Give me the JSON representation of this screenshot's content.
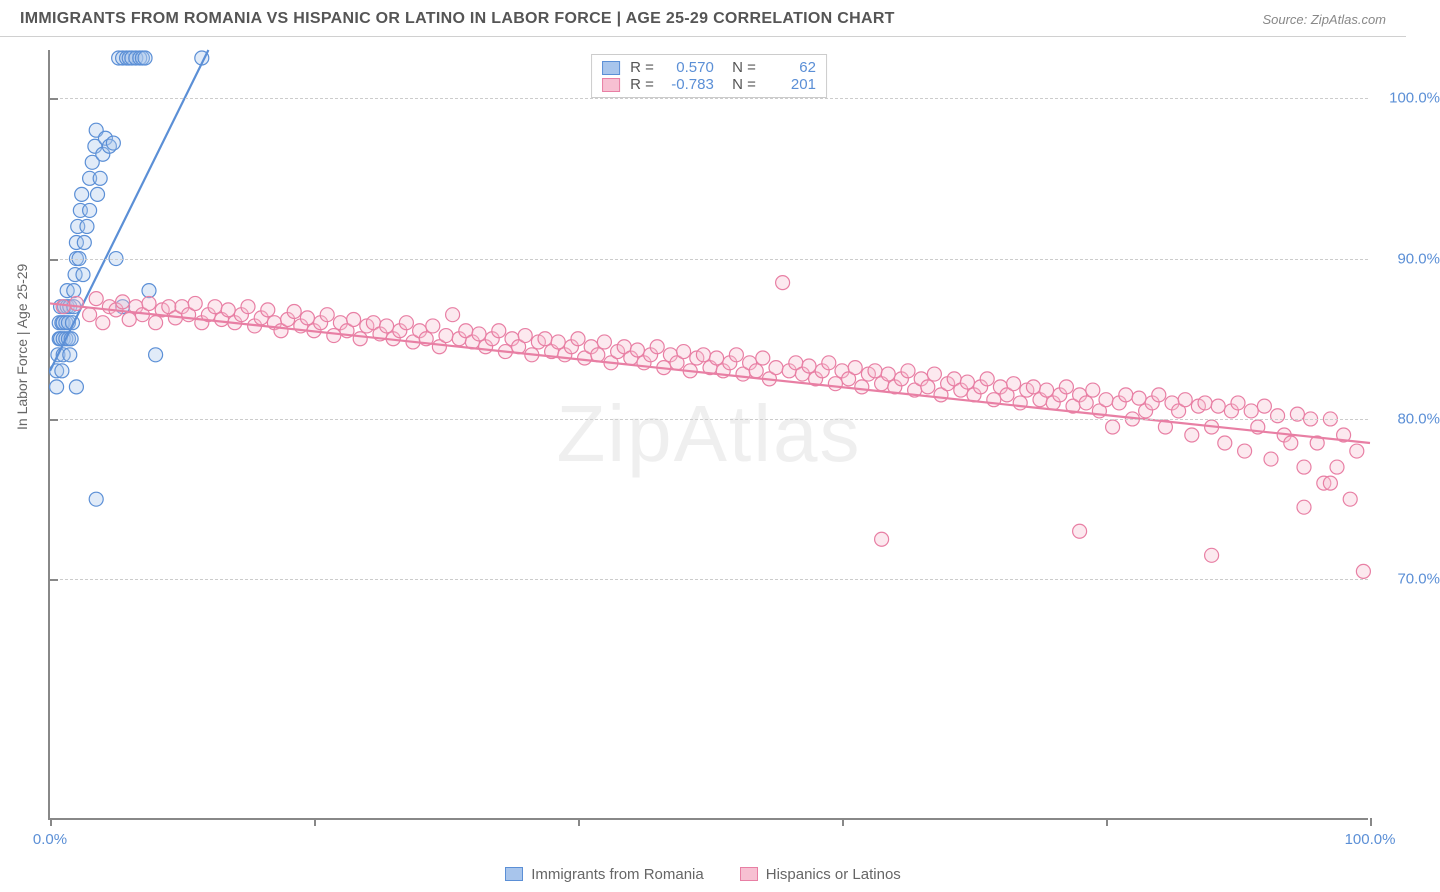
{
  "title": "IMMIGRANTS FROM ROMANIA VS HISPANIC OR LATINO IN LABOR FORCE | AGE 25-29 CORRELATION CHART",
  "source": "Source: ZipAtlas.com",
  "watermark": "ZipAtlas",
  "ylabel": "In Labor Force | Age 25-29",
  "chart": {
    "type": "scatter",
    "xlim": [
      0,
      100
    ],
    "ylim": [
      55,
      103
    ],
    "yticks": [
      70,
      80,
      90,
      100
    ],
    "ytick_labels": [
      "70.0%",
      "80.0%",
      "90.0%",
      "100.0%"
    ],
    "xticks": [
      0,
      20,
      40,
      60,
      80,
      100
    ],
    "x_corner_labels": [
      "0.0%",
      "100.0%"
    ],
    "grid_color": "#cccccc",
    "axis_color": "#888888",
    "background": "#ffffff",
    "marker_radius": 7,
    "marker_fill_opacity": 0.35,
    "marker_stroke_width": 1.2,
    "trend_line_width": 2.2,
    "series": [
      {
        "name": "Immigrants from Romania",
        "color": "#5b8fd6",
        "fill": "#a8c5ec",
        "R": "0.570",
        "N": "62",
        "trend": {
          "x1": 0,
          "y1": 83,
          "x2": 12,
          "y2": 103
        },
        "points": [
          [
            0.5,
            82
          ],
          [
            0.5,
            83
          ],
          [
            0.6,
            84
          ],
          [
            0.7,
            85
          ],
          [
            0.7,
            86
          ],
          [
            0.8,
            85
          ],
          [
            0.8,
            87
          ],
          [
            0.9,
            86
          ],
          [
            0.9,
            83
          ],
          [
            1.0,
            84
          ],
          [
            1.0,
            85
          ],
          [
            1.0,
            86
          ],
          [
            1.1,
            87
          ],
          [
            1.2,
            85
          ],
          [
            1.2,
            86
          ],
          [
            1.3,
            87
          ],
          [
            1.3,
            88
          ],
          [
            1.4,
            86
          ],
          [
            1.4,
            85
          ],
          [
            1.5,
            87
          ],
          [
            1.5,
            84
          ],
          [
            1.6,
            85
          ],
          [
            1.7,
            86
          ],
          [
            1.8,
            87
          ],
          [
            1.8,
            88
          ],
          [
            1.9,
            89
          ],
          [
            2.0,
            90
          ],
          [
            2.0,
            91
          ],
          [
            2.1,
            92
          ],
          [
            2.2,
            90
          ],
          [
            2.3,
            93
          ],
          [
            2.4,
            94
          ],
          [
            2.5,
            89
          ],
          [
            2.6,
            91
          ],
          [
            2.8,
            92
          ],
          [
            3.0,
            93
          ],
          [
            3.0,
            95
          ],
          [
            3.2,
            96
          ],
          [
            3.4,
            97
          ],
          [
            3.5,
            98
          ],
          [
            3.6,
            94
          ],
          [
            3.8,
            95
          ],
          [
            4.0,
            96.5
          ],
          [
            4.2,
            97.5
          ],
          [
            4.5,
            97
          ],
          [
            4.8,
            97.2
          ],
          [
            5.0,
            90
          ],
          [
            5.2,
            102.5
          ],
          [
            5.5,
            102.5
          ],
          [
            5.8,
            102.5
          ],
          [
            6.0,
            102.5
          ],
          [
            6.2,
            102.5
          ],
          [
            6.5,
            102.5
          ],
          [
            6.8,
            102.5
          ],
          [
            7.0,
            102.5
          ],
          [
            7.2,
            102.5
          ],
          [
            7.5,
            88
          ],
          [
            8.0,
            84
          ],
          [
            11.5,
            102.5
          ],
          [
            2.0,
            82
          ],
          [
            3.5,
            75
          ],
          [
            5.5,
            87
          ]
        ]
      },
      {
        "name": "Hispanics or Latinos",
        "color": "#e87fa4",
        "fill": "#f7c0d2",
        "R": "-0.783",
        "N": "201",
        "trend": {
          "x1": 0,
          "y1": 87.2,
          "x2": 100,
          "y2": 78.5
        },
        "points": [
          [
            1,
            87
          ],
          [
            2,
            87.2
          ],
          [
            3,
            86.5
          ],
          [
            3.5,
            87.5
          ],
          [
            4,
            86
          ],
          [
            4.5,
            87
          ],
          [
            5,
            86.8
          ],
          [
            5.5,
            87.3
          ],
          [
            6,
            86.2
          ],
          [
            6.5,
            87
          ],
          [
            7,
            86.5
          ],
          [
            7.5,
            87.2
          ],
          [
            8,
            86
          ],
          [
            8.5,
            86.8
          ],
          [
            9,
            87
          ],
          [
            9.5,
            86.3
          ],
          [
            10,
            87
          ],
          [
            10.5,
            86.5
          ],
          [
            11,
            87.2
          ],
          [
            11.5,
            86
          ],
          [
            12,
            86.5
          ],
          [
            12.5,
            87
          ],
          [
            13,
            86.2
          ],
          [
            13.5,
            86.8
          ],
          [
            14,
            86
          ],
          [
            14.5,
            86.5
          ],
          [
            15,
            87
          ],
          [
            15.5,
            85.8
          ],
          [
            16,
            86.3
          ],
          [
            16.5,
            86.8
          ],
          [
            17,
            86
          ],
          [
            17.5,
            85.5
          ],
          [
            18,
            86.2
          ],
          [
            18.5,
            86.7
          ],
          [
            19,
            85.8
          ],
          [
            19.5,
            86.3
          ],
          [
            20,
            85.5
          ],
          [
            20.5,
            86
          ],
          [
            21,
            86.5
          ],
          [
            21.5,
            85.2
          ],
          [
            22,
            86
          ],
          [
            22.5,
            85.5
          ],
          [
            23,
            86.2
          ],
          [
            23.5,
            85
          ],
          [
            24,
            85.8
          ],
          [
            24.5,
            86
          ],
          [
            25,
            85.3
          ],
          [
            25.5,
            85.8
          ],
          [
            26,
            85
          ],
          [
            26.5,
            85.5
          ],
          [
            27,
            86
          ],
          [
            27.5,
            84.8
          ],
          [
            28,
            85.5
          ],
          [
            28.5,
            85
          ],
          [
            29,
            85.8
          ],
          [
            29.5,
            84.5
          ],
          [
            30,
            85.2
          ],
          [
            30.5,
            86.5
          ],
          [
            31,
            85
          ],
          [
            31.5,
            85.5
          ],
          [
            32,
            84.8
          ],
          [
            32.5,
            85.3
          ],
          [
            33,
            84.5
          ],
          [
            33.5,
            85
          ],
          [
            34,
            85.5
          ],
          [
            34.5,
            84.2
          ],
          [
            35,
            85
          ],
          [
            35.5,
            84.5
          ],
          [
            36,
            85.2
          ],
          [
            36.5,
            84
          ],
          [
            37,
            84.8
          ],
          [
            37.5,
            85
          ],
          [
            38,
            84.2
          ],
          [
            38.5,
            84.8
          ],
          [
            39,
            84
          ],
          [
            39.5,
            84.5
          ],
          [
            40,
            85
          ],
          [
            40.5,
            83.8
          ],
          [
            41,
            84.5
          ],
          [
            41.5,
            84
          ],
          [
            42,
            84.8
          ],
          [
            42.5,
            83.5
          ],
          [
            43,
            84.2
          ],
          [
            43.5,
            84.5
          ],
          [
            44,
            83.8
          ],
          [
            44.5,
            84.3
          ],
          [
            45,
            83.5
          ],
          [
            45.5,
            84
          ],
          [
            46,
            84.5
          ],
          [
            46.5,
            83.2
          ],
          [
            47,
            84
          ],
          [
            47.5,
            83.5
          ],
          [
            48,
            84.2
          ],
          [
            48.5,
            83
          ],
          [
            49,
            83.8
          ],
          [
            49.5,
            84
          ],
          [
            50,
            83.2
          ],
          [
            50.5,
            83.8
          ],
          [
            51,
            83
          ],
          [
            51.5,
            83.5
          ],
          [
            52,
            84
          ],
          [
            52.5,
            82.8
          ],
          [
            53,
            83.5
          ],
          [
            53.5,
            83
          ],
          [
            54,
            83.8
          ],
          [
            54.5,
            82.5
          ],
          [
            55,
            83.2
          ],
          [
            55.5,
            88.5
          ],
          [
            56,
            83
          ],
          [
            56.5,
            83.5
          ],
          [
            57,
            82.8
          ],
          [
            57.5,
            83.3
          ],
          [
            58,
            82.5
          ],
          [
            58.5,
            83
          ],
          [
            59,
            83.5
          ],
          [
            59.5,
            82.2
          ],
          [
            60,
            83
          ],
          [
            60.5,
            82.5
          ],
          [
            61,
            83.2
          ],
          [
            61.5,
            82
          ],
          [
            62,
            82.8
          ],
          [
            62.5,
            83
          ],
          [
            63,
            82.2
          ],
          [
            63.5,
            82.8
          ],
          [
            64,
            82
          ],
          [
            64.5,
            82.5
          ],
          [
            65,
            83
          ],
          [
            65.5,
            81.8
          ],
          [
            66,
            82.5
          ],
          [
            66.5,
            82
          ],
          [
            67,
            82.8
          ],
          [
            67.5,
            81.5
          ],
          [
            68,
            82.2
          ],
          [
            68.5,
            82.5
          ],
          [
            69,
            81.8
          ],
          [
            69.5,
            82.3
          ],
          [
            70,
            81.5
          ],
          [
            70.5,
            82
          ],
          [
            71,
            82.5
          ],
          [
            71.5,
            81.2
          ],
          [
            72,
            82
          ],
          [
            72.5,
            81.5
          ],
          [
            73,
            82.2
          ],
          [
            73.5,
            81
          ],
          [
            74,
            81.8
          ],
          [
            74.5,
            82
          ],
          [
            75,
            81.2
          ],
          [
            75.5,
            81.8
          ],
          [
            76,
            81
          ],
          [
            76.5,
            81.5
          ],
          [
            77,
            82
          ],
          [
            77.5,
            80.8
          ],
          [
            78,
            81.5
          ],
          [
            78.5,
            81
          ],
          [
            79,
            81.8
          ],
          [
            79.5,
            80.5
          ],
          [
            80,
            81.2
          ],
          [
            80.5,
            79.5
          ],
          [
            81,
            81
          ],
          [
            81.5,
            81.5
          ],
          [
            82,
            80
          ],
          [
            82.5,
            81.3
          ],
          [
            83,
            80.5
          ],
          [
            83.5,
            81
          ],
          [
            84,
            81.5
          ],
          [
            84.5,
            79.5
          ],
          [
            85,
            81
          ],
          [
            85.5,
            80.5
          ],
          [
            86,
            81.2
          ],
          [
            86.5,
            79
          ],
          [
            87,
            80.8
          ],
          [
            87.5,
            81
          ],
          [
            88,
            79.5
          ],
          [
            88.5,
            80.8
          ],
          [
            89,
            78.5
          ],
          [
            89.5,
            80.5
          ],
          [
            90,
            81
          ],
          [
            90.5,
            78
          ],
          [
            91,
            80.5
          ],
          [
            91.5,
            79.5
          ],
          [
            92,
            80.8
          ],
          [
            92.5,
            77.5
          ],
          [
            93,
            80.2
          ],
          [
            93.5,
            79
          ],
          [
            94,
            78.5
          ],
          [
            94.5,
            80.3
          ],
          [
            95,
            77
          ],
          [
            95.5,
            80
          ],
          [
            96,
            78.5
          ],
          [
            96.5,
            76
          ],
          [
            97,
            80
          ],
          [
            97.5,
            77
          ],
          [
            98,
            79
          ],
          [
            98.5,
            75
          ],
          [
            99,
            78
          ],
          [
            99.5,
            70.5
          ],
          [
            63,
            72.5
          ],
          [
            78,
            73
          ],
          [
            88,
            71.5
          ],
          [
            95,
            74.5
          ],
          [
            97,
            76
          ]
        ]
      }
    ]
  },
  "colors": {
    "title": "#555555",
    "source": "#888888",
    "axis_label": "#666666",
    "tick_value": "#5b8fd6"
  }
}
